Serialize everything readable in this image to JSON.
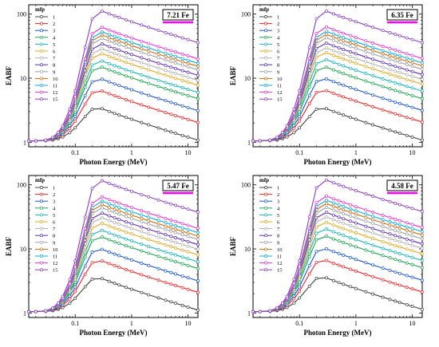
{
  "chart_data": [
    {
      "type": "line",
      "box_label": "7.21 Fe",
      "xlabel": "Photon Energy (MeV)",
      "ylabel": "EABF",
      "x_scale": "log",
      "y_scale": "log",
      "xlim": [
        0.015,
        15
      ],
      "ylim": [
        0.85,
        140
      ],
      "x_ticks": [
        {
          "value": 0.1,
          "label": "0.1"
        },
        {
          "value": 1,
          "label": "1"
        },
        {
          "value": 10,
          "label": "10"
        }
      ],
      "y_ticks": [
        {
          "value": 1,
          "label": "1"
        },
        {
          "value": 10,
          "label": "10"
        },
        {
          "value": 100,
          "label": "100"
        }
      ],
      "legend_title": "mfp",
      "legend_position": "top-left",
      "accent_color": "#ff00ff",
      "series_labels": [
        "1",
        "2",
        "3",
        "4",
        "5",
        "6",
        "7",
        "8",
        "9",
        "10",
        "11",
        "12",
        "15"
      ],
      "series_peaks": [
        3.6,
        6.8,
        10.4,
        16,
        20,
        26,
        31,
        37,
        45,
        51,
        57,
        67,
        120
      ]
    },
    {
      "type": "line",
      "box_label": "6.35 Fe",
      "xlabel": "Photon Energy (MeV)",
      "ylabel": "EABF",
      "x_scale": "log",
      "y_scale": "log",
      "xlim": [
        0.015,
        15
      ],
      "ylim": [
        0.85,
        140
      ],
      "x_ticks": [
        {
          "value": 0.1,
          "label": "0.1"
        },
        {
          "value": 1,
          "label": "1"
        },
        {
          "value": 10,
          "label": "10"
        }
      ],
      "y_ticks": [
        {
          "value": 1,
          "label": "1"
        },
        {
          "value": 10,
          "label": "10"
        },
        {
          "value": 100,
          "label": "100"
        }
      ],
      "legend_title": "mfp",
      "legend_position": "top-left",
      "accent_color": "#ff00ff",
      "series_labels": [
        "1",
        "2",
        "3",
        "4",
        "5",
        "6",
        "7",
        "8",
        "9",
        "10",
        "11",
        "12",
        "15"
      ],
      "series_peaks": [
        3.6,
        6.9,
        10.5,
        16,
        21,
        27,
        32,
        38,
        46,
        52,
        58,
        68,
        120
      ]
    },
    {
      "type": "line",
      "box_label": "5.47 Fe",
      "xlabel": "Photon Energy (MeV)",
      "ylabel": "EABF",
      "x_scale": "log",
      "y_scale": "log",
      "xlim": [
        0.015,
        15
      ],
      "ylim": [
        0.85,
        140
      ],
      "x_ticks": [
        {
          "value": 0.1,
          "label": "0.1"
        },
        {
          "value": 1,
          "label": "1"
        },
        {
          "value": 10,
          "label": "10"
        }
      ],
      "y_ticks": [
        {
          "value": 1,
          "label": "1"
        },
        {
          "value": 10,
          "label": "10"
        },
        {
          "value": 100,
          "label": "100"
        }
      ],
      "legend_title": "mfp",
      "legend_position": "top-left",
      "accent_color": "#ff00ff",
      "series_labels": [
        "1",
        "2",
        "3",
        "4",
        "5",
        "6",
        "7",
        "8",
        "9",
        "10",
        "11",
        "12",
        "15"
      ],
      "series_peaks": [
        3.7,
        7.0,
        10.6,
        16.5,
        21,
        27,
        33,
        39,
        47,
        53,
        60,
        70,
        125
      ]
    },
    {
      "type": "line",
      "box_label": "4.58 Fe",
      "xlabel": "Photon Energy (MeV)",
      "ylabel": "EABF",
      "x_scale": "log",
      "y_scale": "log",
      "xlim": [
        0.015,
        15
      ],
      "ylim": [
        0.85,
        140
      ],
      "x_ticks": [
        {
          "value": 0.1,
          "label": "0.1"
        },
        {
          "value": 1,
          "label": "1"
        },
        {
          "value": 10,
          "label": "10"
        }
      ],
      "y_ticks": [
        {
          "value": 1,
          "label": "1"
        },
        {
          "value": 10,
          "label": "10"
        },
        {
          "value": 100,
          "label": "100"
        }
      ],
      "legend_title": "mfp",
      "legend_position": "top-left",
      "accent_color": "#ff00ff",
      "series_labels": [
        "1",
        "2",
        "3",
        "4",
        "5",
        "6",
        "7",
        "8",
        "9",
        "10",
        "11",
        "12",
        "15"
      ],
      "series_peaks": [
        3.8,
        7.1,
        10.8,
        17,
        22,
        28,
        34,
        40,
        48,
        55,
        62,
        72,
        128
      ]
    }
  ],
  "series_colors": [
    "#404040",
    "#ff2020",
    "#1a55e0",
    "#17a84b",
    "#0fb8b8",
    "#e8a81b",
    "#b0b0b0",
    "#5a2ec0",
    "#9aa0a8",
    "#d16a0a",
    "#00b0e0",
    "#ee30d8",
    "#8a3ccf"
  ],
  "marker_x": [
    0.015,
    0.02,
    0.03,
    0.04,
    0.05,
    0.06,
    0.08,
    0.1,
    0.15,
    0.2,
    0.3,
    0.4,
    0.5,
    0.6,
    0.8,
    1,
    1.5,
    2,
    3,
    4,
    5,
    6,
    8,
    10,
    15
  ],
  "curve_shape": {
    "peak_x": 0.25,
    "low_x_value": 1.05,
    "tail_ratio_at_15MeV": 0.3
  }
}
